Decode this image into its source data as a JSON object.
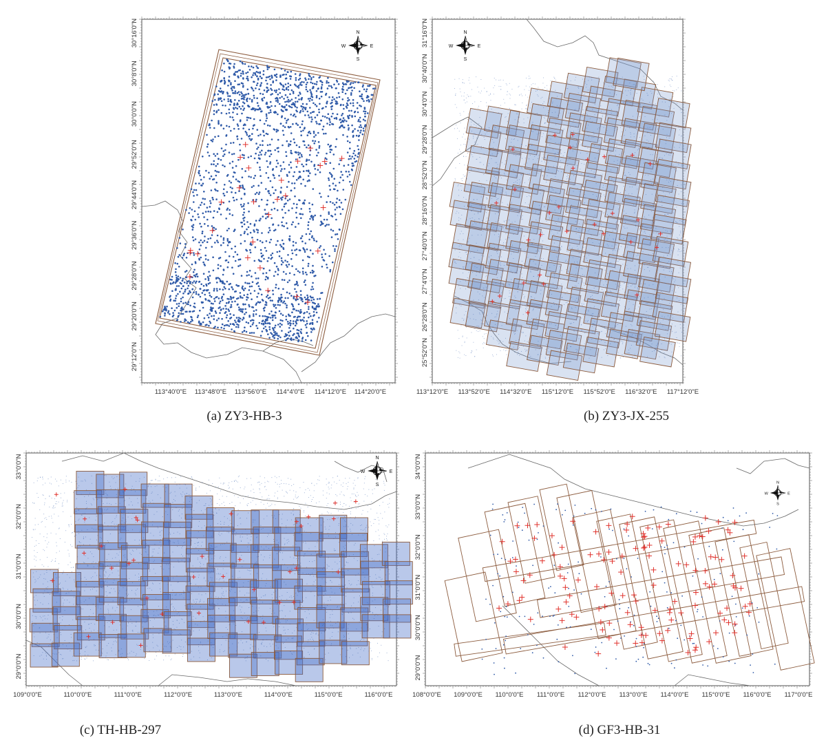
{
  "colors": {
    "frame": "#555555",
    "scene_outline": "#8b5a3c",
    "tie_points": "#2f5aa8",
    "control_points": "#e0302a",
    "boundary": "#666666"
  },
  "icons": {
    "north_arrow": "compass-rose-icon"
  },
  "compass": {
    "n": "N",
    "s": "S",
    "e": "E",
    "w": "W"
  },
  "panels": [
    {
      "id": "a",
      "caption": "(a)  ZY3-HB-3",
      "x_ticks": [
        "113°40'0\"E",
        "113°48'0\"E",
        "113°56'0\"E",
        "114°4'0\"E",
        "114°12'0\"E",
        "114°20'0\"E"
      ],
      "y_ticks": [
        "30°16'0\"N",
        "30°8'0\"N",
        "30°0'0\"N",
        "29°52'0\"N",
        "29°44'0\"N",
        "29°36'0\"N",
        "29°28'0\"N",
        "29°20'0\"N",
        "29°12'0\"N"
      ]
    },
    {
      "id": "b",
      "caption": "(b) ZY3-JX-255",
      "x_ticks": [
        "113°12'0\"E",
        "113°52'0\"E",
        "114°32'0\"E",
        "115°12'0\"E",
        "115°52'0\"E",
        "116°32'0\"E",
        "117°12'0\"E"
      ],
      "y_ticks": [
        "31°16'0\"N",
        "30°40'0\"N",
        "30°4'0\"N",
        "29°28'0\"N",
        "28°52'0\"N",
        "28°16'0\"N",
        "27°40'0\"N",
        "27°4'0\"N",
        "26°28'0\"N",
        "25°52'0\"N"
      ]
    },
    {
      "id": "c",
      "caption": "(c) TH-HB-297",
      "x_ticks": [
        "109°0'0\"E",
        "110°0'0\"E",
        "111°0'0\"E",
        "112°0'0\"E",
        "113°0'0\"E",
        "114°0'0\"E",
        "115°0'0\"E",
        "116°0'0\"E"
      ],
      "y_ticks": [
        "33°0'0\"N",
        "32°0'0\"N",
        "31°0'0\"N",
        "30°0'0\"N",
        "29°0'0\"N"
      ]
    },
    {
      "id": "d",
      "caption": "(d) GF3-HB-31",
      "x_ticks": [
        "108°0'0\"E",
        "109°0'0\"E",
        "110°0'0\"E",
        "111°0'0\"E",
        "112°0'0\"E",
        "113°0'0\"E",
        "114°0'0\"E",
        "115°0'0\"E",
        "116°0'0\"E",
        "117°0'0\"E"
      ],
      "y_ticks": [
        "34°0'0\"N",
        "33°0'0\"N",
        "32°0'0\"N",
        "31°0'0\"N",
        "30°0'0\"N",
        "29°0'0\"N"
      ]
    }
  ]
}
